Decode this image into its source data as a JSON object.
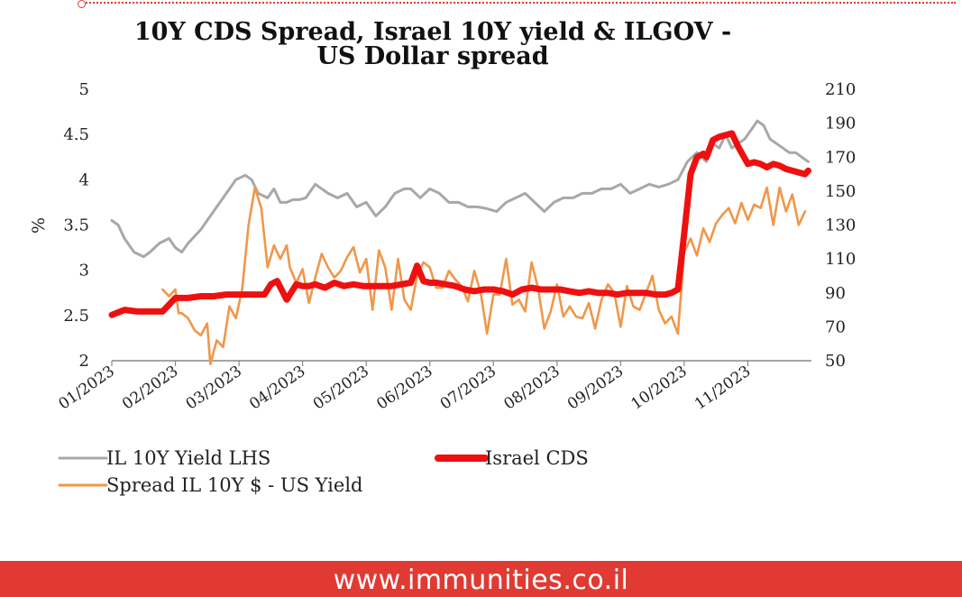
{
  "page": {
    "footer_url": "www.immunities.co.il",
    "accent_color": "#e03a33"
  },
  "chart_data": {
    "type": "line",
    "title_line1": "10Y CDS Spread, Israel 10Y yield & ILGOV -",
    "title_line2": "US Dollar spread",
    "ylabel": "%",
    "x_tick_labels": [
      "01/2023",
      "02/2023",
      "03/2023",
      "04/2023",
      "05/2023",
      "06/2023",
      "07/2023",
      "08/2023",
      "09/2023",
      "10/2023",
      "11/2023"
    ],
    "x_range": [
      0,
      11.0
    ],
    "y_left": {
      "ticks": [
        2,
        2.5,
        3,
        3.5,
        4,
        4.5,
        5
      ],
      "tick_labels": [
        "2",
        "2.5",
        "3",
        "3.5",
        "4",
        "4.5",
        "5"
      ],
      "range": [
        2,
        5
      ]
    },
    "y_right": {
      "ticks": [
        50,
        70,
        90,
        110,
        130,
        150,
        170,
        190,
        210
      ],
      "tick_labels": [
        "50",
        "70",
        "90",
        "110",
        "130",
        "150",
        "170",
        "190",
        "210"
      ],
      "range": [
        50,
        210
      ]
    },
    "grid": false,
    "legend_position": "bottom-left",
    "series": [
      {
        "name": "IL 10Y Yield LHS",
        "axis": "left",
        "color": "#a8a8a8",
        "x": [
          0.0,
          0.1,
          0.2,
          0.35,
          0.5,
          0.6,
          0.75,
          0.9,
          1.0,
          1.1,
          1.2,
          1.4,
          1.5,
          1.65,
          1.8,
          1.95,
          2.1,
          2.2,
          2.3,
          2.45,
          2.55,
          2.65,
          2.75,
          2.85,
          2.95,
          3.05,
          3.2,
          3.4,
          3.55,
          3.7,
          3.85,
          4.0,
          4.15,
          4.3,
          4.45,
          4.6,
          4.7,
          4.85,
          5.0,
          5.15,
          5.3,
          5.45,
          5.6,
          5.75,
          5.9,
          6.05,
          6.2,
          6.35,
          6.5,
          6.65,
          6.8,
          6.95,
          7.1,
          7.25,
          7.4,
          7.55,
          7.7,
          7.85,
          8.0,
          8.15,
          8.3,
          8.45,
          8.6,
          8.75,
          8.9,
          9.05,
          9.2,
          9.35,
          9.45,
          9.55,
          9.65,
          9.75,
          9.85,
          9.95,
          10.05,
          10.15,
          10.25,
          10.35,
          10.45,
          10.55,
          10.65,
          10.75,
          10.85,
          10.95
        ],
        "y": [
          3.55,
          3.5,
          3.35,
          3.2,
          3.15,
          3.2,
          3.3,
          3.35,
          3.25,
          3.2,
          3.3,
          3.45,
          3.55,
          3.7,
          3.85,
          4.0,
          4.05,
          4.0,
          3.85,
          3.8,
          3.9,
          3.75,
          3.75,
          3.78,
          3.78,
          3.8,
          3.95,
          3.85,
          3.8,
          3.85,
          3.7,
          3.75,
          3.6,
          3.7,
          3.85,
          3.9,
          3.9,
          3.8,
          3.9,
          3.85,
          3.75,
          3.75,
          3.7,
          3.7,
          3.68,
          3.65,
          3.75,
          3.8,
          3.85,
          3.75,
          3.65,
          3.75,
          3.8,
          3.8,
          3.85,
          3.85,
          3.9,
          3.9,
          3.95,
          3.85,
          3.9,
          3.95,
          3.92,
          3.95,
          4.0,
          4.2,
          4.3,
          4.2,
          4.4,
          4.35,
          4.5,
          4.35,
          4.4,
          4.45,
          4.55,
          4.65,
          4.6,
          4.45,
          4.4,
          4.35,
          4.3,
          4.3,
          4.25,
          4.2
        ]
      },
      {
        "name": "Israel CDS",
        "axis": "right",
        "color": "#ee1010",
        "x": [
          0.0,
          0.2,
          0.4,
          0.6,
          0.8,
          1.0,
          1.2,
          1.4,
          1.6,
          1.8,
          2.0,
          2.2,
          2.4,
          2.5,
          2.6,
          2.75,
          2.9,
          3.0,
          3.1,
          3.2,
          3.35,
          3.5,
          3.65,
          3.8,
          3.95,
          4.1,
          4.25,
          4.4,
          4.55,
          4.7,
          4.8,
          4.9,
          5.0,
          5.1,
          5.25,
          5.4,
          5.55,
          5.7,
          5.85,
          6.0,
          6.15,
          6.3,
          6.45,
          6.6,
          6.75,
          6.9,
          7.05,
          7.2,
          7.35,
          7.5,
          7.65,
          7.8,
          7.95,
          8.1,
          8.25,
          8.4,
          8.55,
          8.7,
          8.8,
          8.9,
          9.0,
          9.1,
          9.2,
          9.3,
          9.35,
          9.45,
          9.55,
          9.65,
          9.75,
          9.85,
          10.0,
          10.1,
          10.2,
          10.3,
          10.4,
          10.5,
          10.6,
          10.7,
          10.8,
          10.9,
          10.95
        ],
        "y": [
          77,
          80,
          79,
          79,
          79,
          87,
          87,
          88,
          88,
          89,
          89,
          89,
          89,
          95,
          97,
          86,
          95,
          94,
          94,
          95,
          93,
          96,
          94,
          95,
          94,
          94,
          94,
          94,
          95,
          96,
          106,
          97,
          96,
          96,
          95,
          94,
          92,
          91,
          92,
          92,
          91,
          89,
          92,
          93,
          92,
          92,
          92,
          91,
          90,
          91,
          90,
          90,
          89,
          90,
          90,
          90,
          89,
          89,
          90,
          92,
          125,
          160,
          170,
          172,
          170,
          180,
          182,
          183,
          184,
          176,
          166,
          167,
          166,
          164,
          166,
          165,
          163,
          162,
          161,
          160,
          162
        ]
      },
      {
        "name": "Spread IL 10Y $ - US Yield",
        "axis": "right",
        "color": "#f0974a",
        "x": [
          0.8,
          0.9,
          1.0,
          1.05,
          1.1,
          1.2,
          1.3,
          1.4,
          1.5,
          1.55,
          1.65,
          1.75,
          1.85,
          1.95,
          2.05,
          2.15,
          2.25,
          2.35,
          2.45,
          2.55,
          2.65,
          2.75,
          2.8,
          2.9,
          3.0,
          3.1,
          3.2,
          3.3,
          3.4,
          3.5,
          3.6,
          3.7,
          3.8,
          3.9,
          4.0,
          4.1,
          4.2,
          4.3,
          4.4,
          4.5,
          4.6,
          4.7,
          4.8,
          4.9,
          5.0,
          5.1,
          5.2,
          5.3,
          5.4,
          5.5,
          5.6,
          5.7,
          5.8,
          5.9,
          6.0,
          6.1,
          6.2,
          6.3,
          6.4,
          6.5,
          6.6,
          6.7,
          6.8,
          6.9,
          7.0,
          7.1,
          7.2,
          7.3,
          7.4,
          7.5,
          7.6,
          7.7,
          7.8,
          7.9,
          8.0,
          8.1,
          8.2,
          8.3,
          8.4,
          8.5,
          8.6,
          8.7,
          8.8,
          8.9,
          9.0,
          9.1,
          9.2,
          9.3,
          9.4,
          9.5,
          9.6,
          9.7,
          9.8,
          9.9,
          10.0,
          10.1,
          10.2,
          10.3,
          10.4,
          10.5,
          10.6,
          10.7,
          10.8,
          10.9
        ],
        "y": [
          92,
          88,
          92,
          78,
          78,
          75,
          68,
          65,
          72,
          48,
          62,
          58,
          82,
          75,
          92,
          130,
          152,
          140,
          105,
          118,
          110,
          118,
          105,
          96,
          104,
          84,
          99,
          113,
          105,
          99,
          103,
          111,
          117,
          102,
          110,
          80,
          115,
          105,
          80,
          110,
          86,
          80,
          100,
          108,
          105,
          93,
          93,
          103,
          98,
          94,
          85,
          103,
          90,
          66,
          89,
          89,
          110,
          83,
          86,
          79,
          108,
          93,
          69,
          79,
          95,
          76,
          82,
          76,
          75,
          84,
          69,
          86,
          95,
          90,
          70,
          94,
          82,
          80,
          90,
          100,
          80,
          72,
          76,
          66,
          114,
          122,
          112,
          128,
          120,
          131,
          136,
          140,
          131,
          143,
          133,
          142,
          140,
          152,
          130,
          152,
          138,
          148,
          130,
          138
        ]
      }
    ]
  }
}
